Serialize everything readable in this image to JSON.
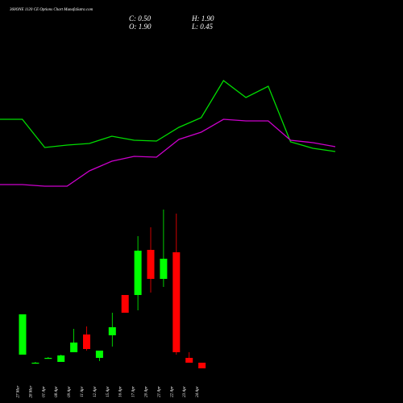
{
  "title": "360ONE 1120 CE Options Chart MunafaSutra.com",
  "header": {
    "close": "C: 0.50",
    "high": "H: 1.90",
    "open": "O: 1.90",
    "low": "L: 0.45"
  },
  "chart_data": [
    {
      "type": "line",
      "ylim": [
        0,
        9.2
      ],
      "series": [
        {
          "color": "#00dd00",
          "values": [
            6.24,
            6.24,
            5.54,
            5.6,
            5.64,
            5.82,
            5.72,
            5.7,
            6.04,
            6.28,
            7.2,
            6.78,
            7.06,
            5.68,
            5.52,
            5.44
          ]
        },
        {
          "color": "#cc00cc",
          "values": [
            4.62,
            4.62,
            4.58,
            4.58,
            4.96,
            5.2,
            5.32,
            5.3,
            5.74,
            5.92,
            6.24,
            6.2,
            6.2,
            5.72,
            5.66,
            5.56
          ]
        }
      ]
    },
    {
      "type": "candlestick",
      "ylim": [
        0,
        9.2
      ],
      "up_color": "#00ff00",
      "down_color": "#ff0000",
      "categories": [
        "27 Mar",
        "28 Mar",
        "01 Apr",
        "08 Apr",
        "09 Apr",
        "11 Apr",
        "12 Apr",
        "15 Apr",
        "16 Apr",
        "17 Apr",
        "20 Apr",
        "21 Apr",
        "22 Apr",
        "23 Apr",
        "24 Apr"
      ],
      "open": [
        0.4,
        0.2,
        0.32,
        0.22,
        0.46,
        0.9,
        0.32,
        0.88,
        1.88,
        1.88,
        3.0,
        2.28,
        2.94,
        0.32,
        0.2
      ],
      "high": [
        1.4,
        0.22,
        0.34,
        0.4,
        1.04,
        1.1,
        0.5,
        1.44,
        1.88,
        3.34,
        3.56,
        4.0,
        3.9,
        0.46,
        0.2
      ],
      "low": [
        0.4,
        0.2,
        0.32,
        0.22,
        0.46,
        0.5,
        0.24,
        0.6,
        1.44,
        1.5,
        1.94,
        2.08,
        0.4,
        0.2,
        0.06
      ],
      "close": [
        1.4,
        0.2,
        0.32,
        0.38,
        0.7,
        0.54,
        0.5,
        1.08,
        1.44,
        2.98,
        2.28,
        2.78,
        0.46,
        0.2,
        0.06
      ]
    }
  ]
}
